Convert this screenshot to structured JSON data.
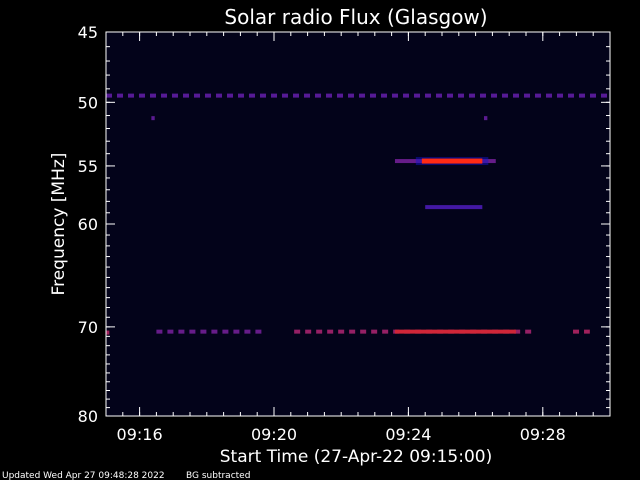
{
  "chart_data": {
    "type": "heatmap",
    "title": "Solar radio Flux (Glasgow)",
    "xlabel": "Start Time (27-Apr-22 09:15:00)",
    "ylabel": "Frequency [MHz]",
    "x_unit": "minutes after 09:15:00",
    "xlim": [
      0,
      15
    ],
    "ylim": [
      45,
      80
    ],
    "y_scale": "log",
    "x_ticks": [
      {
        "value": 1,
        "label": "09:16"
      },
      {
        "value": 5,
        "label": "09:20"
      },
      {
        "value": 9,
        "label": "09:24"
      },
      {
        "value": 13,
        "label": "09:28"
      }
    ],
    "y_ticks": [
      {
        "value": 45,
        "label": "45"
      },
      {
        "value": 50,
        "label": "50"
      },
      {
        "value": 55,
        "label": "55"
      },
      {
        "value": 60,
        "label": "60"
      },
      {
        "value": 70,
        "label": "70"
      },
      {
        "value": 80,
        "label": "80"
      }
    ],
    "colors": {
      "background": "#000000",
      "plot_bg": "#03031a",
      "low": "#1414c8",
      "high": "#ff2a14",
      "axis": "#ffffff"
    },
    "features": [
      {
        "name": "band-49.5",
        "freq": 49.5,
        "t_start": 0.0,
        "t_end": 15.0,
        "intensity": 0.28,
        "dashed": true
      },
      {
        "name": "spot-51.2a",
        "freq": 51.2,
        "t_start": 1.35,
        "t_end": 1.45,
        "intensity": 0.3,
        "dashed": false
      },
      {
        "name": "spot-51.2b",
        "freq": 51.2,
        "t_start": 11.25,
        "t_end": 11.35,
        "intensity": 0.3,
        "dashed": false
      },
      {
        "name": "burst-54.6-halo",
        "freq": 54.6,
        "t_start": 8.6,
        "t_end": 11.6,
        "intensity": 0.35,
        "dashed": false
      },
      {
        "name": "burst-54.6-core",
        "freq": 54.6,
        "t_start": 9.4,
        "t_end": 11.2,
        "intensity": 1.0,
        "dashed": false
      },
      {
        "name": "band-58.5",
        "freq": 58.5,
        "t_start": 9.5,
        "t_end": 11.2,
        "intensity": 0.2,
        "dashed": false
      },
      {
        "name": "band-70.5-left",
        "freq": 70.5,
        "t_start": 1.5,
        "t_end": 4.7,
        "intensity": 0.35,
        "dashed": true
      },
      {
        "name": "band-70.5-main",
        "freq": 70.5,
        "t_start": 5.6,
        "t_end": 12.7,
        "intensity": 0.55,
        "dashed": true
      },
      {
        "name": "band-70.5-core",
        "freq": 70.5,
        "t_start": 8.6,
        "t_end": 12.2,
        "intensity": 0.8,
        "dashed": false
      },
      {
        "name": "band-70.5-right",
        "freq": 70.5,
        "t_start": 13.9,
        "t_end": 14.4,
        "intensity": 0.6,
        "dashed": true
      },
      {
        "name": "spot-70.6-edge",
        "freq": 70.6,
        "t_start": 0.0,
        "t_end": 0.1,
        "intensity": 0.6,
        "dashed": false
      }
    ]
  },
  "footer": {
    "updated": "Updated Wed Apr 27 09:48:28 2022",
    "bg_note": "BG subtracted"
  }
}
